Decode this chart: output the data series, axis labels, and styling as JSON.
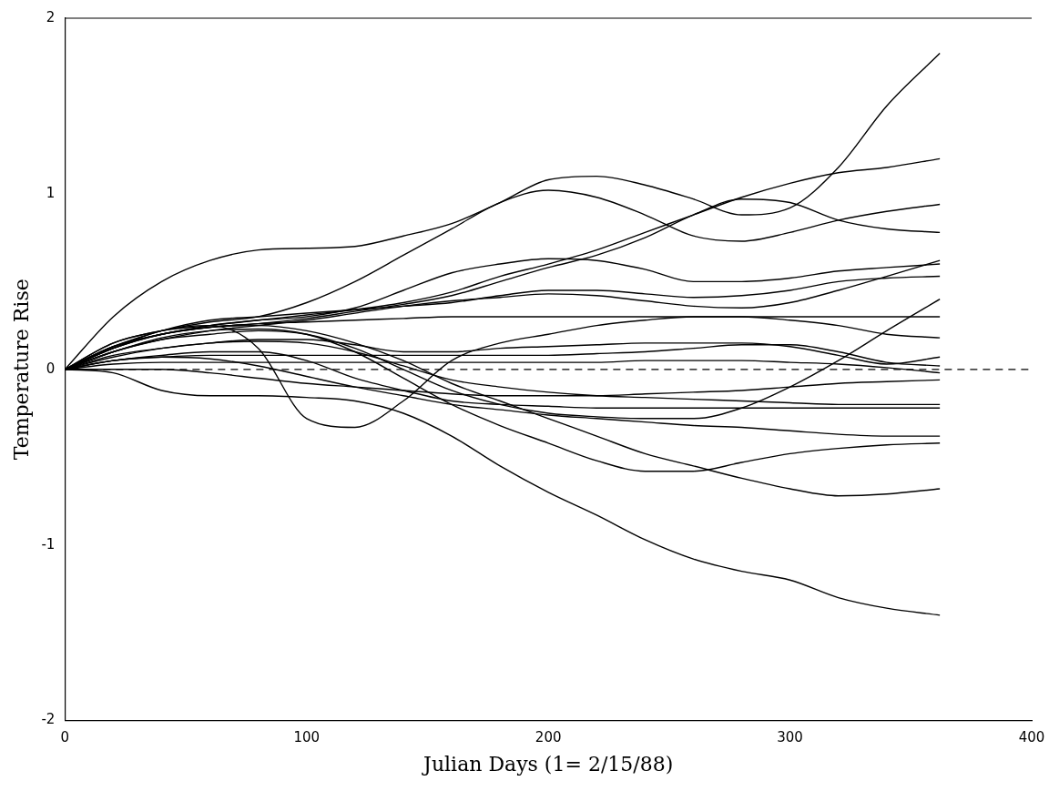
{
  "chart_data": {
    "type": "line",
    "xlabel": "Julian Days (1= 2/15/88)",
    "ylabel": "Temperature Rise",
    "xlim": [
      0,
      400
    ],
    "xticks": [
      0,
      100,
      200,
      300,
      400
    ],
    "ylim": [
      -2,
      2
    ],
    "yticks": [
      -2,
      -1,
      0,
      1,
      2
    ],
    "grid": false,
    "legend": false,
    "marker": "none",
    "line_style": "solid",
    "x": [
      0,
      20,
      40,
      60,
      80,
      100,
      120,
      140,
      160,
      180,
      200,
      220,
      240,
      260,
      280,
      300,
      320,
      340,
      362
    ],
    "ref_lines": [
      {
        "axis": "y",
        "value": 0,
        "line_style": "dashed",
        "color": "#000000"
      }
    ],
    "series": [
      {
        "color": "#000000",
        "values": [
          0,
          0.3,
          0.5,
          0.62,
          0.68,
          0.69,
          0.7,
          0.76,
          0.83,
          0.95,
          1.08,
          1.1,
          1.05,
          0.97,
          0.88,
          0.92,
          1.15,
          1.5,
          1.8
        ]
      },
      {
        "color": "#000000",
        "values": [
          0,
          0.15,
          0.22,
          0.25,
          0.28,
          0.31,
          0.34,
          0.38,
          0.44,
          0.53,
          0.6,
          0.68,
          0.78,
          0.88,
          0.98,
          1.06,
          1.12,
          1.15,
          1.2
        ]
      },
      {
        "color": "#000000",
        "values": [
          0,
          0.13,
          0.2,
          0.24,
          0.26,
          0.29,
          0.33,
          0.37,
          0.42,
          0.5,
          0.58,
          0.65,
          0.75,
          0.88,
          0.97,
          0.95,
          0.85,
          0.8,
          0.78
        ]
      },
      {
        "color": "#000000",
        "values": [
          0,
          0.15,
          0.22,
          0.27,
          0.3,
          0.38,
          0.5,
          0.65,
          0.8,
          0.95,
          1.02,
          0.98,
          0.88,
          0.76,
          0.73,
          0.78,
          0.85,
          0.9,
          0.94
        ]
      },
      {
        "color": "#000000",
        "values": [
          0,
          0.13,
          0.2,
          0.25,
          0.28,
          0.3,
          0.35,
          0.45,
          0.55,
          0.6,
          0.63,
          0.62,
          0.57,
          0.5,
          0.5,
          0.52,
          0.56,
          0.58,
          0.6
        ]
      },
      {
        "color": "#000000",
        "values": [
          0,
          0.13,
          0.22,
          0.28,
          0.3,
          0.32,
          0.34,
          0.36,
          0.38,
          0.42,
          0.45,
          0.45,
          0.43,
          0.41,
          0.42,
          0.45,
          0.5,
          0.52,
          0.53
        ]
      },
      {
        "color": "#000000",
        "values": [
          0,
          0.1,
          0.17,
          0.22,
          0.25,
          0.28,
          0.32,
          0.36,
          0.39,
          0.41,
          0.43,
          0.42,
          0.39,
          0.36,
          0.35,
          0.38,
          0.45,
          0.53,
          0.62
        ]
      },
      {
        "color": "#000000",
        "values": [
          0,
          0.12,
          0.2,
          0.24,
          0.26,
          0.27,
          0.28,
          0.29,
          0.3,
          0.3,
          0.3,
          0.3,
          0.3,
          0.3,
          0.3,
          0.3,
          0.3,
          0.3,
          0.3
        ]
      },
      {
        "color": "#000000",
        "values": [
          0,
          0.12,
          0.22,
          0.25,
          0.12,
          -0.28,
          -0.33,
          -0.18,
          0.05,
          0.15,
          0.2,
          0.25,
          0.28,
          0.3,
          0.3,
          0.28,
          0.25,
          0.2,
          0.18
        ]
      },
      {
        "color": "#000000",
        "values": [
          0,
          0.1,
          0.17,
          0.2,
          0.22,
          0.2,
          0.12,
          0,
          -0.12,
          -0.2,
          -0.25,
          -0.27,
          -0.28,
          -0.28,
          -0.22,
          -0.1,
          0.05,
          0.22,
          0.4
        ]
      },
      {
        "color": "#000000",
        "values": [
          0,
          0.08,
          0.12,
          0.15,
          0.17,
          0.17,
          0.14,
          0.1,
          0.1,
          0.12,
          0.13,
          0.14,
          0.15,
          0.15,
          0.15,
          0.13,
          0.08,
          0.03,
          0.07
        ]
      },
      {
        "color": "#000000",
        "values": [
          0,
          0.05,
          0.07,
          0.08,
          0.08,
          0.08,
          0.08,
          0.08,
          0.08,
          0.08,
          0.08,
          0.09,
          0.1,
          0.12,
          0.14,
          0.14,
          0.1,
          0.04,
          0.02
        ]
      },
      {
        "color": "#000000",
        "values": [
          0,
          0.03,
          0.04,
          0.04,
          0.04,
          0.04,
          0.04,
          0.04,
          0.04,
          0.04,
          0.04,
          0.04,
          0.05,
          0.05,
          0.05,
          0.04,
          0.03,
          0.01,
          -0.02
        ]
      },
      {
        "color": "#000000",
        "values": [
          0,
          0,
          0,
          -0.02,
          -0.05,
          -0.08,
          -0.1,
          -0.12,
          -0.14,
          -0.15,
          -0.15,
          -0.15,
          -0.14,
          -0.13,
          -0.12,
          -0.1,
          -0.08,
          -0.07,
          -0.06
        ]
      },
      {
        "color": "#000000",
        "values": [
          0,
          0.07,
          0.12,
          0.15,
          0.16,
          0.15,
          0.1,
          0.02,
          -0.06,
          -0.1,
          -0.13,
          -0.15,
          -0.16,
          -0.17,
          -0.18,
          -0.19,
          -0.2,
          -0.2,
          -0.2
        ]
      },
      {
        "color": "#000000",
        "values": [
          0,
          0.05,
          0.08,
          0.1,
          0.1,
          0.05,
          -0.05,
          -0.12,
          -0.18,
          -0.2,
          -0.21,
          -0.22,
          -0.22,
          -0.22,
          -0.22,
          -0.22,
          -0.22,
          -0.22,
          -0.22
        ]
      },
      {
        "color": "#000000",
        "values": [
          0,
          0.1,
          0.18,
          0.22,
          0.23,
          0.2,
          0.1,
          -0.05,
          -0.2,
          -0.32,
          -0.42,
          -0.52,
          -0.58,
          -0.58,
          -0.53,
          -0.48,
          -0.45,
          -0.43,
          -0.42
        ]
      },
      {
        "color": "#000000",
        "values": [
          0,
          0.05,
          0.07,
          0.06,
          0.02,
          -0.04,
          -0.1,
          -0.15,
          -0.2,
          -0.23,
          -0.26,
          -0.28,
          -0.3,
          -0.32,
          -0.33,
          -0.35,
          -0.37,
          -0.38,
          -0.38
        ]
      },
      {
        "color": "#000000",
        "values": [
          0,
          0.12,
          0.2,
          0.24,
          0.25,
          0.22,
          0.15,
          0.05,
          -0.08,
          -0.18,
          -0.28,
          -0.38,
          -0.48,
          -0.55,
          -0.62,
          -0.68,
          -0.72,
          -0.71,
          -0.68
        ]
      },
      {
        "color": "#000000",
        "values": [
          0,
          -0.02,
          -0.12,
          -0.15,
          -0.15,
          -0.16,
          -0.18,
          -0.25,
          -0.38,
          -0.55,
          -0.7,
          -0.83,
          -0.97,
          -1.08,
          -1.15,
          -1.2,
          -1.3,
          -1.36,
          -1.4
        ]
      }
    ]
  }
}
